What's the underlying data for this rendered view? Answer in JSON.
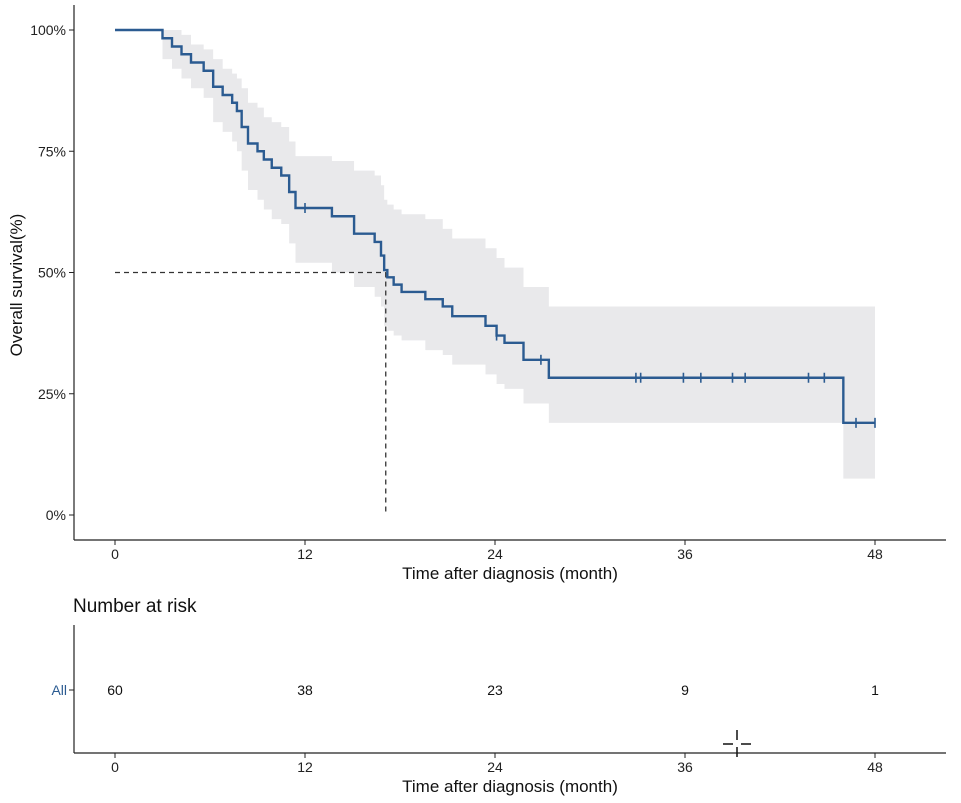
{
  "chart_data": [
    {
      "type": "line",
      "subtype": "kaplan-meier",
      "xlabel": "Time after diagnosis (month)",
      "ylabel": "Overall survival(%)",
      "xlim": [
        0,
        50
      ],
      "ylim": [
        0,
        1
      ],
      "x_ticks": [
        0,
        12,
        24,
        36,
        48
      ],
      "x_tick_labels": [
        "0",
        "12",
        "24",
        "36",
        "48"
      ],
      "y_ticks": [
        0,
        0.25,
        0.5,
        0.75,
        1.0
      ],
      "y_tick_labels": [
        "0%",
        "25%",
        "50%",
        "75%",
        "100%"
      ],
      "grid": false,
      "legend": "none",
      "series_color": "#2b5b91",
      "ci_color": "#e9e9eb",
      "reference_color": "#333333",
      "median_survival": {
        "x": 17.1,
        "y": 0.5
      },
      "series": [
        {
          "name": "All",
          "step_x": [
            0,
            3.0,
            3.6,
            4.2,
            4.8,
            5.6,
            6.2,
            6.8,
            7.4,
            7.7,
            8.0,
            8.4,
            9.0,
            9.4,
            9.9,
            10.5,
            11.0,
            11.4,
            13.7,
            15.1,
            16.4,
            16.8,
            17.0,
            17.2,
            17.6,
            18.1,
            19.6,
            20.7,
            21.3,
            23.4,
            24.1,
            24.6,
            25.8,
            27.4,
            46.0
          ],
          "step_y": [
            1.0,
            0.983,
            0.966,
            0.95,
            0.933,
            0.916,
            0.883,
            0.866,
            0.85,
            0.833,
            0.8,
            0.766,
            0.75,
            0.733,
            0.716,
            0.7,
            0.666,
            0.633,
            0.616,
            0.58,
            0.563,
            0.535,
            0.505,
            0.49,
            0.475,
            0.46,
            0.445,
            0.43,
            0.41,
            0.39,
            0.37,
            0.355,
            0.32,
            0.283,
            0.19
          ],
          "x_end": 48,
          "censored_x": [
            12.0,
            24.1,
            26.9,
            32.9,
            33.2,
            35.9,
            37.0,
            39.0,
            39.8,
            43.8,
            44.8,
            46.8,
            48.0
          ],
          "ci_upper": [
            1.0,
            1.0,
            1.0,
            0.99,
            0.97,
            0.96,
            0.94,
            0.92,
            0.91,
            0.9,
            0.88,
            0.85,
            0.84,
            0.82,
            0.81,
            0.8,
            0.77,
            0.74,
            0.73,
            0.71,
            0.7,
            0.68,
            0.65,
            0.64,
            0.63,
            0.62,
            0.61,
            0.59,
            0.57,
            0.55,
            0.53,
            0.51,
            0.47,
            0.43,
            0.43
          ],
          "ci_lower": [
            1.0,
            0.94,
            0.92,
            0.9,
            0.88,
            0.86,
            0.81,
            0.79,
            0.77,
            0.75,
            0.71,
            0.67,
            0.65,
            0.63,
            0.61,
            0.6,
            0.56,
            0.52,
            0.5,
            0.47,
            0.45,
            0.43,
            0.39,
            0.38,
            0.37,
            0.36,
            0.34,
            0.33,
            0.31,
            0.29,
            0.27,
            0.26,
            0.23,
            0.19,
            0.075
          ]
        }
      ]
    },
    {
      "type": "table",
      "title": "Number at risk",
      "xlabel": "Time after diagnosis (month)",
      "x_ticks": [
        0,
        12,
        24,
        36,
        48
      ],
      "x_tick_labels": [
        "0",
        "12",
        "24",
        "36",
        "48"
      ],
      "row_label": "All",
      "row_label_color": "#2b5b91",
      "values": [
        60,
        38,
        23,
        9,
        1
      ]
    }
  ]
}
